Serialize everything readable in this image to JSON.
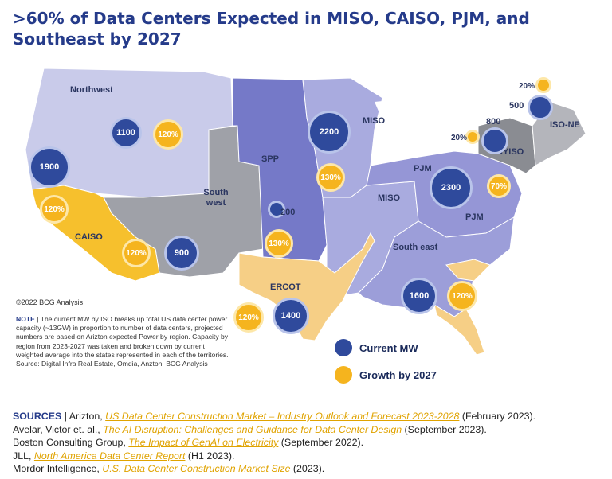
{
  "title": ">60% of Data Centers Expected in MISO, CAISO, PJM, and Southeast by 2027",
  "copyright": "©2022 BCG Analysis",
  "note": {
    "label": "NOTE",
    "text": "The current MW by ISO breaks up total US data center power capacity (~13GW) in proportion to number of data centers, projected numbers are based on Arizton expected Power by region. Capacity by region from 2023-2027 was taken and broken down by current weighted average into the states represented in each of the territories. Source: Digital Infra Real Estate, Omdia, Anzton, BCG Analysis"
  },
  "colors": {
    "northwest": "#c9cbea",
    "southwest": "#9fa1a8",
    "caiso": "#f6c02d",
    "spp": "#7579c8",
    "miso": "#a9abdf",
    "ercot": "#f6cf86",
    "southeast": "#9c9ed9",
    "pjm": "#9596d6",
    "nyiso": "#8a8c92",
    "isone": "#b4b5bb",
    "current_mw": "#2f4a9c",
    "growth": "#f5b41e"
  },
  "regions": [
    {
      "id": "northwest",
      "label": "Northwest"
    },
    {
      "id": "southwest",
      "label": "South west"
    },
    {
      "id": "caiso",
      "label": "CAISO"
    },
    {
      "id": "spp",
      "label": "SPP"
    },
    {
      "id": "miso-north",
      "label": "MISO"
    },
    {
      "id": "miso-central",
      "label": "MISO"
    },
    {
      "id": "pjm-north",
      "label": "PJM"
    },
    {
      "id": "pjm-south",
      "label": "PJM"
    },
    {
      "id": "ercot",
      "label": "ERCOT"
    },
    {
      "id": "southeast",
      "label": "South east"
    },
    {
      "id": "nyiso",
      "label": "NYISO"
    },
    {
      "id": "isone",
      "label": "ISO-NE"
    }
  ],
  "current_mw": [
    {
      "region": "Northwest",
      "value": "1100"
    },
    {
      "region": "CAISO north",
      "value": "1900"
    },
    {
      "region": "Southwest",
      "value": "900"
    },
    {
      "region": "MISO",
      "value": "2200"
    },
    {
      "region": "SPP",
      "value": "200"
    },
    {
      "region": "PJM",
      "value": "2300"
    },
    {
      "region": "NYISO",
      "value": "800"
    },
    {
      "region": "ISO-NE",
      "value": "500"
    },
    {
      "region": "ERCOT",
      "value": "1400"
    },
    {
      "region": "Southeast",
      "value": "1600"
    }
  ],
  "growth": [
    {
      "region": "Northwest",
      "value": "120%"
    },
    {
      "region": "CAISO north",
      "value": "120%"
    },
    {
      "region": "CAISO south",
      "value": "120%"
    },
    {
      "region": "MISO",
      "value": "130%"
    },
    {
      "region": "SPP",
      "value": "130%"
    },
    {
      "region": "NYISO",
      "value": "20%"
    },
    {
      "region": "ISO-NE",
      "value": "20%"
    },
    {
      "region": "PJM",
      "value": "70%"
    },
    {
      "region": "ERCOT",
      "value": "120%"
    },
    {
      "region": "Southeast",
      "value": "120%"
    }
  ],
  "legend": {
    "current_mw": "Current MW",
    "growth": "Growth by 2027"
  },
  "sources": {
    "label": "SOURCES",
    "items": [
      {
        "pre": "Arizton, ",
        "link": "US Data Center Construction Market – Industry Outlook and Forecast 2023-2028",
        "post": " (February 2023)."
      },
      {
        "pre": "Avelar, Victor et. al., ",
        "link": "The AI Disruption: Challenges and Guidance for Data Center Design",
        "post": " (September 2023)."
      },
      {
        "pre": "Boston Consulting Group, ",
        "link": "The Impact of GenAI on Electricity",
        "post": " (September 2022)."
      },
      {
        "pre": "JLL, ",
        "link": "North America Data Center Report",
        "post": " (H1 2023)."
      },
      {
        "pre": "Mordor Intelligence, ",
        "link": "U.S. Data Center Construction Market Size",
        "post": " (2023)."
      }
    ]
  }
}
